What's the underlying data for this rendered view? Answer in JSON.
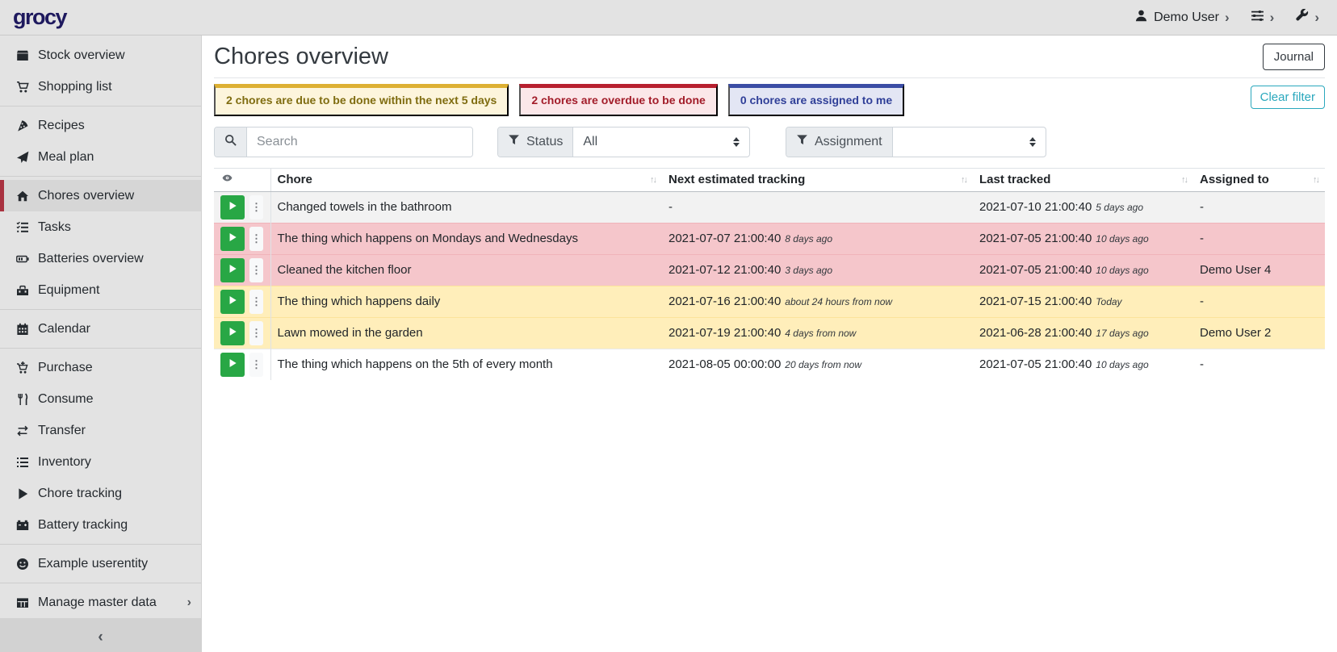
{
  "header": {
    "logo": "grocy",
    "user_menu": {
      "label": "Demo User",
      "icon": "user-icon"
    },
    "settings_menu": {
      "icon": "sliders-icon"
    },
    "admin_menu": {
      "icon": "wrench-icon"
    }
  },
  "glyphs": {
    "chevron_right": "›",
    "chevron_left": "‹",
    "sort": "↑↓",
    "kebab": "⋮"
  },
  "colors": {
    "brand_navy": "#1e195e",
    "active_red": "#a93240",
    "chip_warning_border": "#ddb033",
    "chip_danger_border": "#b71f2e",
    "chip_info_border": "#3b4da5",
    "green_play": "#28a745",
    "clear_filter_teal": "#2aa8bd"
  },
  "sidebar": {
    "items": [
      {
        "label": "Stock overview",
        "icon": "box-icon"
      },
      {
        "label": "Shopping list",
        "icon": "cart-icon",
        "divider_after": true
      },
      {
        "label": "Recipes",
        "icon": "pizza-icon"
      },
      {
        "label": "Meal plan",
        "icon": "paper-plane-icon",
        "divider_after": true
      },
      {
        "label": "Chores overview",
        "icon": "home-icon",
        "active": true
      },
      {
        "label": "Tasks",
        "icon": "tasks-icon"
      },
      {
        "label": "Batteries overview",
        "icon": "battery-icon"
      },
      {
        "label": "Equipment",
        "icon": "toolbox-icon",
        "divider_after": true
      },
      {
        "label": "Calendar",
        "icon": "calendar-icon",
        "divider_after": true
      },
      {
        "label": "Purchase",
        "icon": "cart-plus-icon"
      },
      {
        "label": "Consume",
        "icon": "utensils-icon"
      },
      {
        "label": "Transfer",
        "icon": "exchange-icon"
      },
      {
        "label": "Inventory",
        "icon": "list-icon"
      },
      {
        "label": "Chore tracking",
        "icon": "play-icon"
      },
      {
        "label": "Battery tracking",
        "icon": "car-battery-icon",
        "divider_after": true
      },
      {
        "label": "Example userentity",
        "icon": "smile-icon",
        "divider_after": true
      },
      {
        "label": "Manage master data",
        "icon": "table-icon",
        "has_submenu": true
      }
    ],
    "collapse_chevron": "‹"
  },
  "page": {
    "title": "Chores overview",
    "journal_button": "Journal",
    "clear_filter_button": "Clear filter",
    "filter_chips": [
      {
        "text": "2 chores are due to be done within the next 5 days",
        "variant": "warning"
      },
      {
        "text": "2 chores are overdue to be done",
        "variant": "danger"
      },
      {
        "text": "0 chores are assigned to me",
        "variant": "info"
      }
    ],
    "search": {
      "placeholder": "Search"
    },
    "status_filter": {
      "label": "Status",
      "value": "All"
    },
    "assignment_filter": {
      "label": "Assignment",
      "value": ""
    }
  },
  "table": {
    "columns": [
      "Chore",
      "Next estimated tracking",
      "Last tracked",
      "Assigned to"
    ],
    "rows": [
      {
        "chore": "Changed towels in the bathroom",
        "next": "-",
        "next_rel": "",
        "last": "2021-07-10 21:00:40",
        "last_rel": "5 days ago",
        "assigned": "-",
        "variant": "stripe"
      },
      {
        "chore": "The thing which happens on Mondays and Wednesdays",
        "next": "2021-07-07 21:00:40",
        "next_rel": "8 days ago",
        "last": "2021-07-05 21:00:40",
        "last_rel": "10 days ago",
        "assigned": "-",
        "variant": "danger"
      },
      {
        "chore": "Cleaned the kitchen floor",
        "next": "2021-07-12 21:00:40",
        "next_rel": "3 days ago",
        "last": "2021-07-05 21:00:40",
        "last_rel": "10 days ago",
        "assigned": "Demo User 4",
        "variant": "danger"
      },
      {
        "chore": "The thing which happens daily",
        "next": "2021-07-16 21:00:40",
        "next_rel": "about 24 hours from now",
        "last": "2021-07-15 21:00:40",
        "last_rel": "Today",
        "assigned": "-",
        "variant": "warning"
      },
      {
        "chore": "Lawn mowed in the garden",
        "next": "2021-07-19 21:00:40",
        "next_rel": "4 days from now",
        "last": "2021-06-28 21:00:40",
        "last_rel": "17 days ago",
        "assigned": "Demo User 2",
        "variant": "warning"
      },
      {
        "chore": "The thing which happens on the 5th of every month",
        "next": "2021-08-05 00:00:00",
        "next_rel": "20 days from now",
        "last": "2021-07-05 21:00:40",
        "last_rel": "10 days ago",
        "assigned": "-",
        "variant": "plain"
      }
    ]
  }
}
